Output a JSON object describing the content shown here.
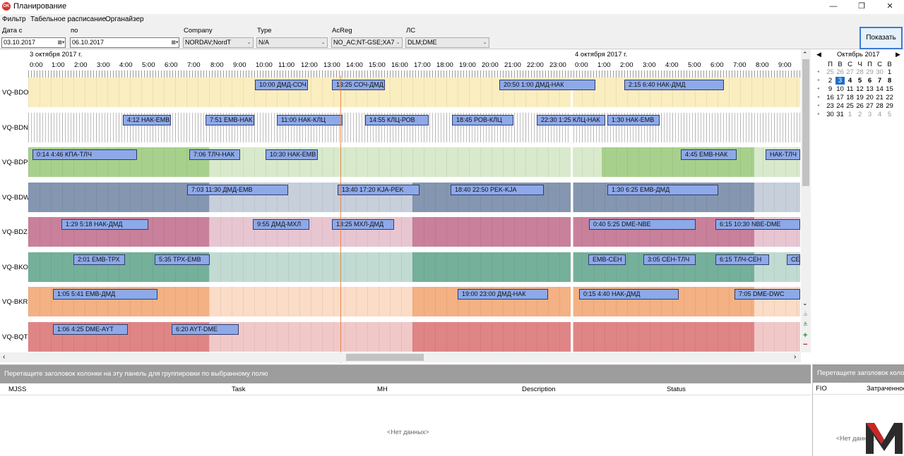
{
  "window": {
    "title": "Планирование",
    "app_icon_text": "OK",
    "minimize": "—",
    "maximize": "❐",
    "close": "✕"
  },
  "menu": [
    "Фильтр",
    "Табельное расписание",
    "Органайзер"
  ],
  "filters": {
    "date_from_label": "Дата с",
    "date_from": "03.10.2017",
    "date_to_label": "по",
    "date_to": "06.10.2017",
    "company_label": "Company",
    "company": "NORDAV;NordT",
    "type_label": "Type",
    "type": "N/A",
    "acreg_label": "AcReg",
    "acreg": "NO_AC;NT-GSE;XA7",
    "ls_label": "ЛС",
    "ls": "DLM;DME",
    "show_button": "Показать"
  },
  "gantt": {
    "day1_label": "3 октября 2017 г.",
    "day2_label": "4 октября 2017 г.",
    "hours_day1": [
      "0:00",
      "1:00",
      "2:00",
      "3:00",
      "4:00",
      "5:00",
      "6:00",
      "7:00",
      "8:00",
      "9:00",
      "10:00",
      "11:00",
      "12:00",
      "13:00",
      "14:00",
      "15:00",
      "16:00",
      "17:00",
      "18:00",
      "19:00",
      "20:00",
      "21:00",
      "22:00",
      "23:00"
    ],
    "hours_day2": [
      "0:00",
      "1:00",
      "2:00",
      "3:00",
      "4:00",
      "5:00",
      "6:00",
      "7:00",
      "8:00",
      "9:00"
    ],
    "rows": [
      {
        "label": "VQ-BDO",
        "color": "#faeec0",
        "tasks": [
          "10:00 ДМД-СОЧ",
          "13:25 СОЧ-ДМД",
          "20:50  1:00 ДМД-НАК",
          "2:15  6:40 НАК-ДМД"
        ]
      },
      {
        "label": "VQ-BDN",
        "color": "#c8c8c8",
        "tasks": [
          "4:12 НАК-EMB",
          "7:51 EMB-НАК",
          "11:00 НАК-КЛЦ",
          "14:55 КЛЦ-РОВ",
          "18:45 РОВ-КЛЦ",
          "22:30  1:25 КЛЦ-НАК",
          "1:30 НАК-EMB"
        ]
      },
      {
        "label": "VQ-BDP",
        "color": "#a8d08d",
        "tasks": [
          "0:14  4:46 КПА-ТЛЧ",
          "7:06 ТЛЧ-НАК",
          "10:30 НАК-EMB",
          "4:45 EMB-НАК",
          "НАК-ТЛЧ"
        ]
      },
      {
        "label": "VQ-BDW",
        "color": "#8496b0",
        "tasks": [
          "7:03 11:30 ДМД-EMB",
          "13:40 17:20 KJA-PEK",
          "18:40 22:50 PEK-KJA",
          "1:30  6:25 EMB-ДМД"
        ]
      },
      {
        "label": "VQ-BDZ",
        "color": "#c9809b",
        "tasks": [
          "1:29  5:18 НАК-ДМД",
          "9:55 ДМД-МХЛ",
          "13:25 МХЛ-ДМД",
          "0:40  5:25 DME-NBE",
          "6:15 10:30 NBE-DME"
        ]
      },
      {
        "label": "VQ-BKO",
        "color": "#75b09b",
        "tasks": [
          "2:01 EMB-ТРХ",
          "5:35 ТРХ-EMB",
          "EMB-СЕН",
          "3:05 СЕН-ТЛЧ",
          "6:15 ТЛЧ-СЕН",
          "СЕН"
        ]
      },
      {
        "label": "VQ-BKR",
        "color": "#f4b183",
        "tasks": [
          "1:05  5:41 EMB-ДМД",
          "19:00 23:00 ДМД-НАК",
          "0:15  4:40 НАК-ДМД",
          "7:05 DME-DWC"
        ]
      },
      {
        "label": "VQ-BQT",
        "color": "#e08585",
        "tasks": [
          "1:06  4:25 DME-AYT",
          "6:20 AYT-DME"
        ]
      }
    ]
  },
  "calendar": {
    "month": "Октябрь 2017",
    "weekdays": [
      "П",
      "В",
      "С",
      "Ч",
      "П",
      "С",
      "В"
    ],
    "weeks": [
      [
        "25",
        "26",
        "27",
        "28",
        "29",
        "30",
        "1"
      ],
      [
        "2",
        "3",
        "4",
        "5",
        "6",
        "7",
        "8"
      ],
      [
        "9",
        "10",
        "11",
        "12",
        "13",
        "14",
        "15"
      ],
      [
        "16",
        "17",
        "18",
        "19",
        "20",
        "21",
        "22"
      ],
      [
        "23",
        "24",
        "25",
        "26",
        "27",
        "28",
        "29"
      ],
      [
        "30",
        "31",
        "1",
        "2",
        "3",
        "4",
        "5"
      ]
    ]
  },
  "bottom": {
    "group_hint": "Перетащите заголовок колонки на эту панель для группировки по выбранному полю",
    "columns": [
      "MJSS",
      "Task",
      "MH",
      "Description",
      "Status"
    ],
    "no_data": "<Нет данных>"
  },
  "right_bottom": {
    "group_hint": "Перетащите заголовок колонки на эту панель для группировки по выбранному полю",
    "columns": [
      "FIO",
      "Затраченное"
    ],
    "no_data": "<Нет данных>"
  }
}
